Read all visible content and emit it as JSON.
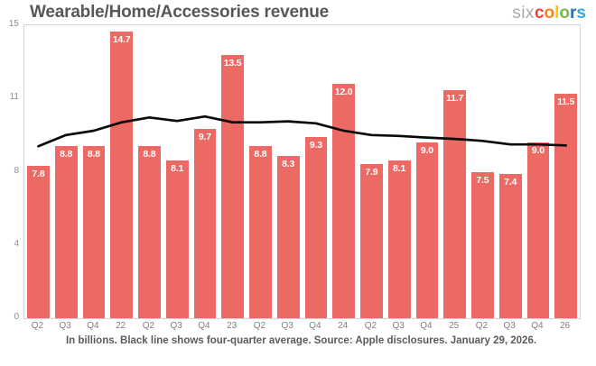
{
  "header": {
    "title": "Wearable/Home/Accessories revenue"
  },
  "logo": {
    "prefix": "six",
    "prefix_color": "#a7a9ac",
    "letters": [
      {
        "ch": "c",
        "color": "#ee4036"
      },
      {
        "ch": "o",
        "color": "#f58220"
      },
      {
        "ch": "l",
        "color": "#ffc20e"
      },
      {
        "ch": "o",
        "color": "#72bf44"
      },
      {
        "ch": "r",
        "color": "#2a6ebb"
      },
      {
        "ch": "s",
        "color": "#29abe2"
      }
    ]
  },
  "chart_data": {
    "type": "bar",
    "title": "Wearable/Home/Accessories revenue",
    "categories": [
      "Q2",
      "Q3",
      "Q4",
      "22",
      "Q2",
      "Q3",
      "Q4",
      "23",
      "Q2",
      "Q3",
      "Q4",
      "24",
      "Q2",
      "Q3",
      "Q4",
      "25",
      "Q2",
      "Q3",
      "Q4",
      "26"
    ],
    "values": [
      7.8,
      8.8,
      8.8,
      14.7,
      8.8,
      8.1,
      9.7,
      13.5,
      8.8,
      8.3,
      9.3,
      12.0,
      7.9,
      8.1,
      9.0,
      11.7,
      7.5,
      7.4,
      9.0,
      11.5
    ],
    "value_labels": [
      "7.8",
      "8.8",
      "8.8",
      "14.7",
      "8.8",
      "8.1",
      "9.7",
      "13.5",
      "8.8",
      "8.3",
      "9.3",
      "12.0",
      "7.9",
      "8.1",
      "9.0",
      "11.7",
      "7.5",
      "7.4",
      "9.0",
      "11.5"
    ],
    "series": [
      {
        "name": "four-quarter average",
        "values": [
          8.8,
          9.38,
          9.6,
          10.03,
          10.28,
          10.1,
          10.33,
          10.03,
          10.03,
          10.08,
          9.98,
          9.6,
          9.38,
          9.33,
          9.25,
          9.18,
          9.08,
          8.9,
          8.9,
          8.85
        ]
      }
    ],
    "xlabel": "",
    "ylabel": "",
    "ylim": [
      0,
      15
    ],
    "yticks": [
      {
        "label": "15",
        "value": 15
      },
      {
        "label": "11",
        "value": 11.25
      },
      {
        "label": "8",
        "value": 7.5
      },
      {
        "label": "4",
        "value": 3.75
      },
      {
        "label": "0",
        "value": 0
      }
    ],
    "grid": false,
    "legend_position": "none",
    "bar_color": "#ed6a64",
    "line_color": "#0a0a0a",
    "frame_color": "#d2d4d5"
  },
  "footer": {
    "note": "In billions. Black line shows four-quarter average. Source: Apple disclosures. January 29, 2026."
  }
}
